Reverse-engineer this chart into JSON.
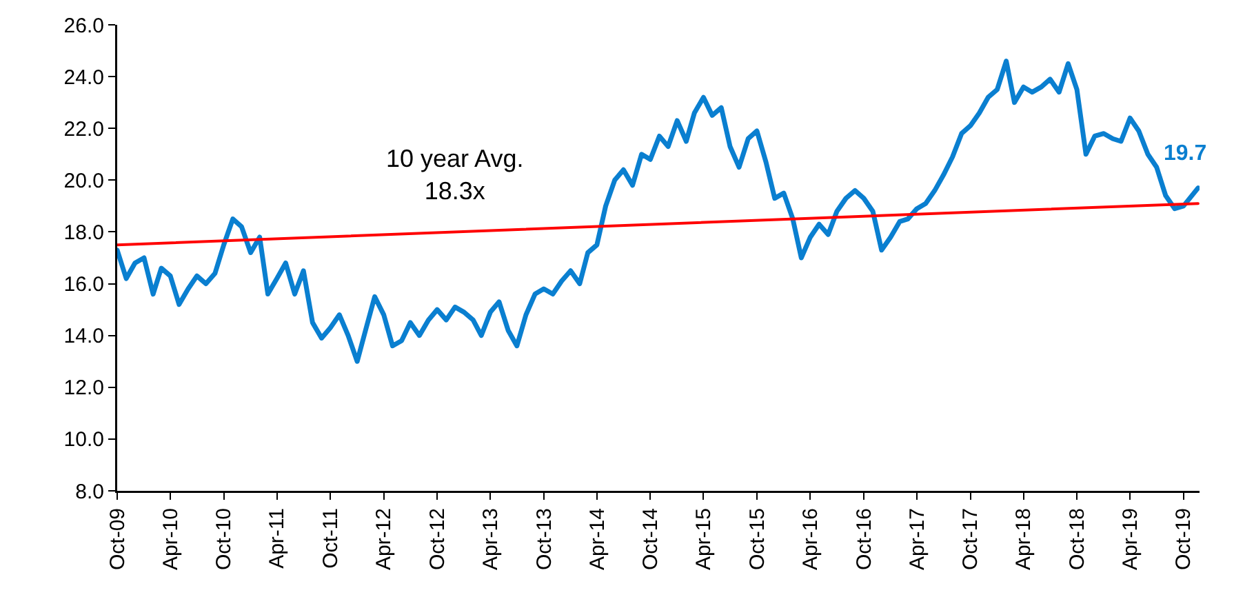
{
  "chart_data": {
    "type": "line",
    "x": [
      "2009-10",
      "2009-11",
      "2009-12",
      "2010-01",
      "2010-02",
      "2010-03",
      "2010-04",
      "2010-05",
      "2010-06",
      "2010-07",
      "2010-08",
      "2010-09",
      "2010-10",
      "2010-11",
      "2010-12",
      "2011-01",
      "2011-02",
      "2011-03",
      "2011-04",
      "2011-05",
      "2011-06",
      "2011-07",
      "2011-08",
      "2011-09",
      "2011-10",
      "2011-11",
      "2011-12",
      "2012-01",
      "2012-02",
      "2012-03",
      "2012-04",
      "2012-05",
      "2012-06",
      "2012-07",
      "2012-08",
      "2012-09",
      "2012-10",
      "2012-11",
      "2012-12",
      "2013-01",
      "2013-02",
      "2013-03",
      "2013-04",
      "2013-05",
      "2013-06",
      "2013-07",
      "2013-08",
      "2013-09",
      "2013-10",
      "2013-11",
      "2013-12",
      "2014-01",
      "2014-02",
      "2014-03",
      "2014-04",
      "2014-05",
      "2014-06",
      "2014-07",
      "2014-08",
      "2014-09",
      "2014-10",
      "2014-11",
      "2014-12",
      "2015-01",
      "2015-02",
      "2015-03",
      "2015-04",
      "2015-05",
      "2015-06",
      "2015-07",
      "2015-08",
      "2015-09",
      "2015-10",
      "2015-11",
      "2015-12",
      "2016-01",
      "2016-02",
      "2016-03",
      "2016-04",
      "2016-05",
      "2016-06",
      "2016-07",
      "2016-08",
      "2016-09",
      "2016-10",
      "2016-11",
      "2016-12",
      "2017-01",
      "2017-02",
      "2017-03",
      "2017-04",
      "2017-05",
      "2017-06",
      "2017-07",
      "2017-08",
      "2017-09",
      "2017-10",
      "2017-11",
      "2017-12",
      "2018-01",
      "2018-02",
      "2018-03",
      "2018-04",
      "2018-05",
      "2018-06",
      "2018-07",
      "2018-08",
      "2018-09",
      "2018-10",
      "2018-11",
      "2018-12",
      "2019-01",
      "2019-02",
      "2019-03",
      "2019-04",
      "2019-05",
      "2019-06",
      "2019-07",
      "2019-08",
      "2019-09",
      "2019-10",
      "2019-11-20"
    ],
    "series": [
      {
        "color": "#0a7fd0",
        "values": [
          17.3,
          16.2,
          16.8,
          17.0,
          15.6,
          16.6,
          16.3,
          15.2,
          15.8,
          16.3,
          16.0,
          16.4,
          17.5,
          18.5,
          18.2,
          17.2,
          17.8,
          15.6,
          16.2,
          16.8,
          15.6,
          16.5,
          14.5,
          13.9,
          14.3,
          14.8,
          14.0,
          13.0,
          14.3,
          15.5,
          14.8,
          13.6,
          13.8,
          14.5,
          14.0,
          14.6,
          15.0,
          14.6,
          15.1,
          14.9,
          14.6,
          14.0,
          14.9,
          15.3,
          14.2,
          13.6,
          14.8,
          15.6,
          15.8,
          15.6,
          16.1,
          16.5,
          16.0,
          17.2,
          17.5,
          19.0,
          20.0,
          20.4,
          19.8,
          21.0,
          20.8,
          21.7,
          21.3,
          22.3,
          21.5,
          22.6,
          23.2,
          22.5,
          22.8,
          21.3,
          20.5,
          21.6,
          21.9,
          20.7,
          19.3,
          19.5,
          18.5,
          17.0,
          17.8,
          18.3,
          17.9,
          18.8,
          19.3,
          19.6,
          19.3,
          18.8,
          17.3,
          17.8,
          18.4,
          18.5,
          18.9,
          19.1,
          19.6,
          20.2,
          20.9,
          21.8,
          22.1,
          22.6,
          23.2,
          23.5,
          24.6,
          23.0,
          23.6,
          23.4,
          23.6,
          23.9,
          23.4,
          24.5,
          23.5,
          21.0,
          21.7,
          21.8,
          21.6,
          21.5,
          22.4,
          21.9,
          21.0,
          20.5,
          19.4,
          18.9,
          19.0,
          19.7
        ]
      },
      {
        "type": "line",
        "color": "#ff0000",
        "x": [
          "2009-10",
          "2019-11-20"
        ],
        "values": [
          17.5,
          19.1
        ]
      }
    ],
    "xlim": [
      "2009-10-01",
      "2019-11-25"
    ],
    "xticks": [
      {
        "value": "2009-10-01",
        "label": "Oct-09"
      },
      {
        "value": "2010-04-01",
        "label": "Apr-10"
      },
      {
        "value": "2010-10-01",
        "label": "Oct-10"
      },
      {
        "value": "2011-04-01",
        "label": "Apr-11"
      },
      {
        "value": "2011-10-01",
        "label": "Oct-11"
      },
      {
        "value": "2012-04-01",
        "label": "Apr-12"
      },
      {
        "value": "2012-10-01",
        "label": "Oct-12"
      },
      {
        "value": "2013-04-01",
        "label": "Apr-13"
      },
      {
        "value": "2013-10-01",
        "label": "Oct-13"
      },
      {
        "value": "2014-04-01",
        "label": "Apr-14"
      },
      {
        "value": "2014-10-01",
        "label": "Oct-14"
      },
      {
        "value": "2015-04-01",
        "label": "Apr-15"
      },
      {
        "value": "2015-10-01",
        "label": "Oct-15"
      },
      {
        "value": "2016-04-01",
        "label": "Apr-16"
      },
      {
        "value": "2016-10-01",
        "label": "Oct-16"
      },
      {
        "value": "2017-04-01",
        "label": "Apr-17"
      },
      {
        "value": "2017-10-01",
        "label": "Oct-17"
      },
      {
        "value": "2018-04-01",
        "label": "Apr-18"
      },
      {
        "value": "2018-10-01",
        "label": "Oct-18"
      },
      {
        "value": "2019-04-01",
        "label": "Apr-19"
      },
      {
        "value": "2019-10-01",
        "label": "Oct-19"
      }
    ],
    "ylim": [
      8,
      26
    ],
    "yticks": [
      {
        "value": 8,
        "label": "8.0"
      },
      {
        "value": 10,
        "label": "10.0"
      },
      {
        "value": 12,
        "label": "12.0"
      },
      {
        "value": 14,
        "label": "14.0"
      },
      {
        "value": 16,
        "label": "16.0"
      },
      {
        "value": 18,
        "label": "18.0"
      },
      {
        "value": 20,
        "label": "20.0"
      },
      {
        "value": 22,
        "label": "22.0"
      },
      {
        "value": 24,
        "label": "24.0"
      },
      {
        "value": 26,
        "label": "26.0"
      }
    ],
    "annotations": [
      "10 year Avg.\n18.3x",
      {
        "text": "19.7",
        "x": "2019-11-20",
        "y": 19.7
      }
    ],
    "marker": "none",
    "line_style": "solid"
  }
}
